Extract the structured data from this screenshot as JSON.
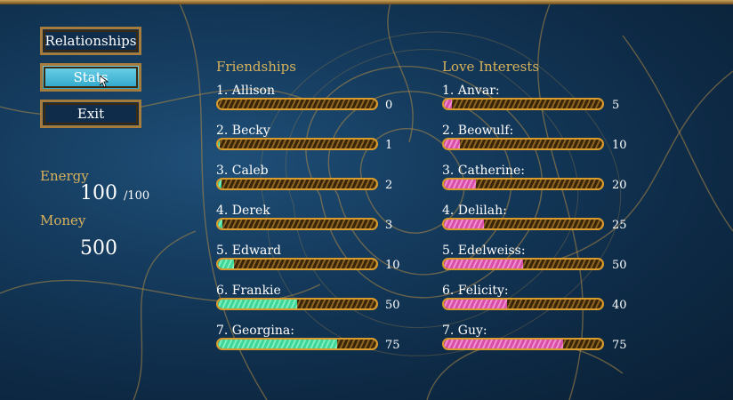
{
  "menu": {
    "relationships": "Relationships",
    "stats": "Stats",
    "exit": "Exit"
  },
  "status": {
    "energy_label": "Energy",
    "energy_value": "100",
    "energy_max": "/100",
    "money_label": "Money",
    "money_value": "500"
  },
  "friendships": {
    "title": "Friendships",
    "max": 100,
    "items": [
      {
        "label": "1. Allison",
        "value": "0"
      },
      {
        "label": "2. Becky",
        "value": "1"
      },
      {
        "label": "3. Caleb",
        "value": "2"
      },
      {
        "label": "4. Derek",
        "value": "3"
      },
      {
        "label": "5. Edward",
        "value": "10"
      },
      {
        "label": "6. Frankie",
        "value": "50"
      },
      {
        "label": "7. Georgina:",
        "value": "75"
      }
    ]
  },
  "love": {
    "title": "Love Interests",
    "max": 100,
    "items": [
      {
        "label": "1. Anvar:",
        "value": "5"
      },
      {
        "label": "2. Beowulf:",
        "value": "10"
      },
      {
        "label": "3. Catherine:",
        "value": "20"
      },
      {
        "label": "4. Delilah:",
        "value": "25"
      },
      {
        "label": "5. Edelweiss:",
        "value": "50"
      },
      {
        "label": "6. Felicity:",
        "value": "40"
      },
      {
        "label": "7. Guy:",
        "value": "75"
      }
    ]
  },
  "colors": {
    "gold": "#d8b25b",
    "friend_fill": "#5fe3ad",
    "love_fill": "#e86bbf",
    "active_button": "#4bbcd9"
  }
}
